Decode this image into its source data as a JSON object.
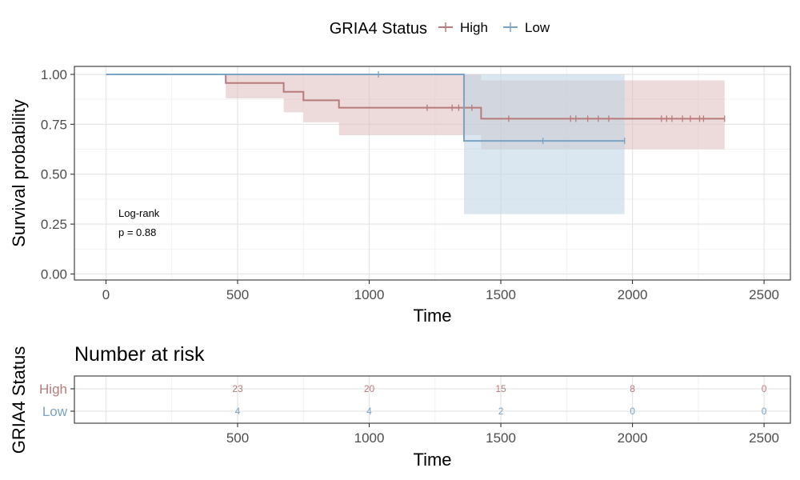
{
  "legend": {
    "title": "GRIA4 Status",
    "items": [
      {
        "label": "High",
        "color": "#b87b7b"
      },
      {
        "label": "Low",
        "color": "#7aa3c4"
      }
    ]
  },
  "annotation": {
    "line1": "Log-rank",
    "line2": "p = 0.88"
  },
  "chart_data": [
    {
      "type": "line",
      "subtype": "kaplan-meier",
      "title": "",
      "xlabel": "Time",
      "ylabel": "Survival probability",
      "xlim": [
        -120,
        2600
      ],
      "ylim": [
        -0.03,
        1.04
      ],
      "x_ticks": [
        0,
        500,
        1000,
        1500,
        2000,
        2500
      ],
      "y_ticks": [
        0.0,
        0.25,
        0.5,
        0.75,
        1.0
      ],
      "y_tick_labels": [
        "0.00",
        "0.25",
        "0.50",
        "0.75",
        "1.00"
      ],
      "grid": true,
      "legend_position": "top",
      "series": [
        {
          "name": "High",
          "color": "#b87b7b",
          "ci_color": "#dfbcbc",
          "steps": [
            {
              "x": 0,
              "y": 1.0,
              "lower": 1.0,
              "upper": 1.0
            },
            {
              "x": 455,
              "y": 0.957,
              "lower": 0.88,
              "upper": 1.0
            },
            {
              "x": 675,
              "y": 0.913,
              "lower": 0.81,
              "upper": 1.0
            },
            {
              "x": 750,
              "y": 0.87,
              "lower": 0.76,
              "upper": 1.0
            },
            {
              "x": 885,
              "y": 0.833,
              "lower": 0.695,
              "upper": 1.0
            },
            {
              "x": 1425,
              "y": 0.778,
              "lower": 0.625,
              "upper": 0.97
            }
          ],
          "end_x": 2350,
          "censor_x": [
            1220,
            1315,
            1340,
            1360,
            1390,
            1530,
            1765,
            1785,
            1830,
            1870,
            1910,
            2110,
            2130,
            2150,
            2190,
            2220,
            2255,
            2270,
            2350
          ]
        },
        {
          "name": "Low",
          "color": "#7aa3c4",
          "ci_color": "#bcd3e3",
          "steps": [
            {
              "x": 0,
              "y": 1.0,
              "lower": 1.0,
              "upper": 1.0
            },
            {
              "x": 1360,
              "y": 0.667,
              "lower": 0.3,
              "upper": 1.0
            }
          ],
          "end_x": 1970,
          "censor_x": [
            1035,
            1660,
            1970
          ]
        }
      ]
    },
    {
      "type": "table",
      "title": "Number at risk",
      "xlabel": "Time",
      "ylabel": "GRIA4 Status",
      "xlim": [
        -120,
        2600
      ],
      "x_ticks": [
        500,
        1000,
        1500,
        2000,
        2500
      ],
      "time_points": [
        500,
        1000,
        1500,
        2000,
        2500
      ],
      "rows": [
        {
          "name": "High",
          "color": "#b87b7b",
          "values": [
            "23",
            "20",
            "15",
            "8",
            "0"
          ]
        },
        {
          "name": "Low",
          "color": "#7aa3c4",
          "values": [
            "4",
            "4",
            "2",
            "0",
            "0"
          ]
        }
      ]
    }
  ]
}
